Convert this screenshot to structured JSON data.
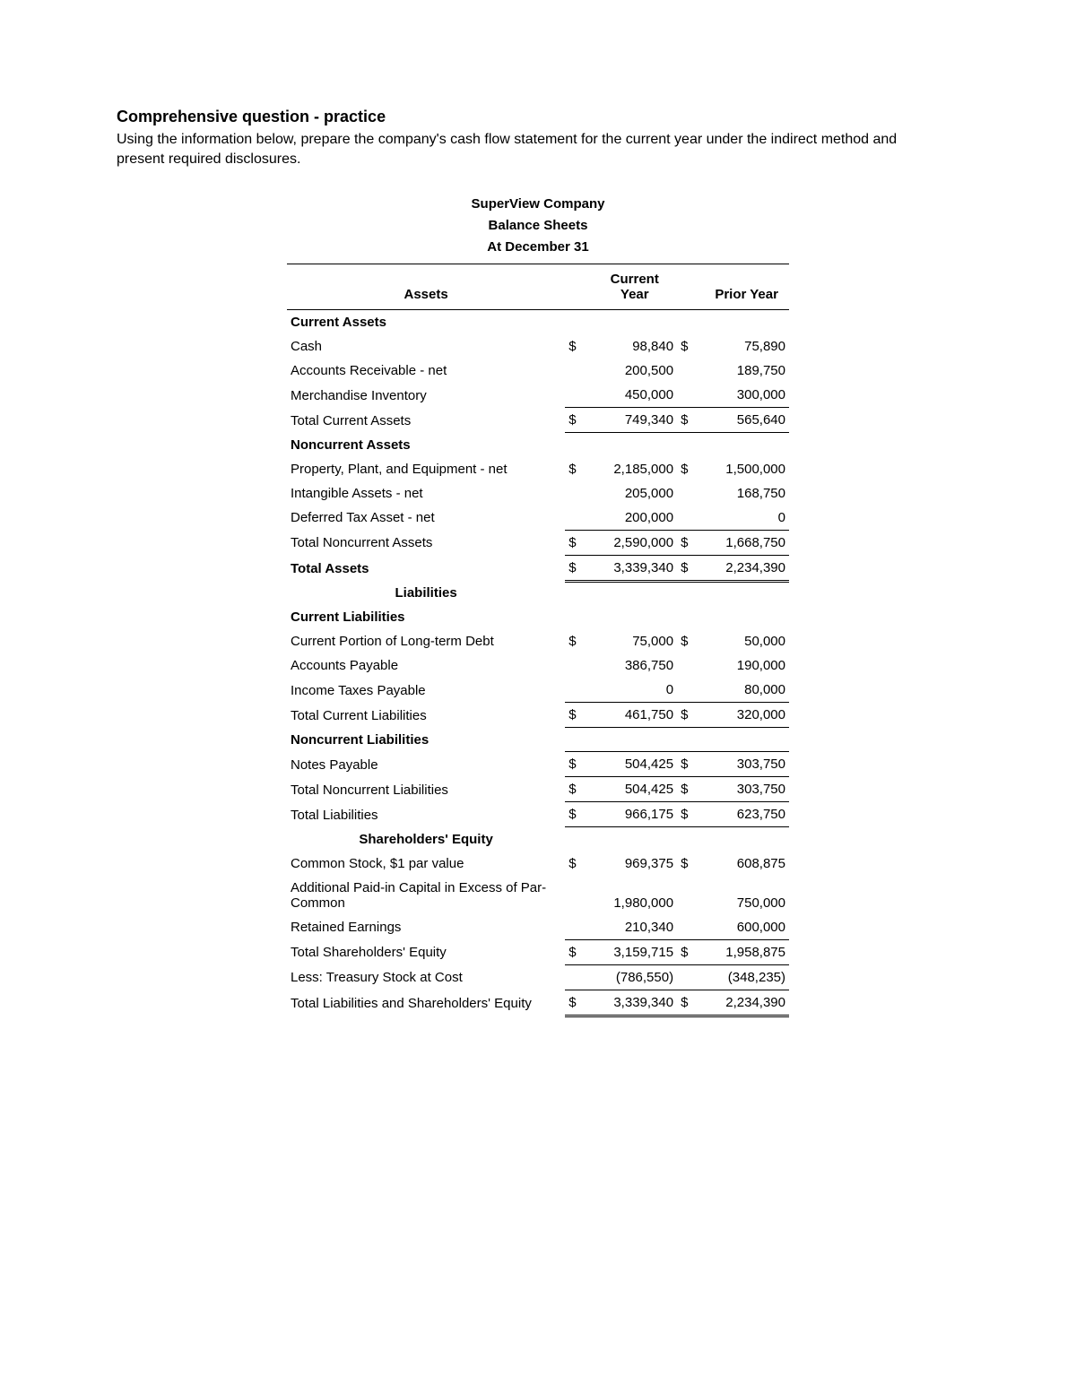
{
  "page": {
    "title": "Comprehensive question - practice",
    "body": "Using the information below, prepare the company's cash flow statement for the current year under the indirect method and present required disclosures."
  },
  "statement": {
    "company": "SuperView Company",
    "report": "Balance Sheets",
    "date": "At December 31",
    "col_assets": "Assets",
    "col_current": "Current Year",
    "col_prior": "Prior Year"
  },
  "sections": {
    "current_assets": "Current Assets",
    "noncurrent_assets": "Noncurrent Assets",
    "total_assets": "Total Assets",
    "liabilities": "Liabilities",
    "current_liabilities": "Current Liabilities",
    "noncurrent_liabilities": "Noncurrent Liabilities",
    "shareholders_equity": "Shareholders' Equity"
  },
  "dollar": "$",
  "rows": {
    "cash": {
      "label": "Cash",
      "cy": "98,840",
      "py": "75,890"
    },
    "ar": {
      "label": "Accounts Receivable - net",
      "cy": "200,500",
      "py": "189,750"
    },
    "inventory": {
      "label": "Merchandise Inventory",
      "cy": "450,000",
      "py": "300,000"
    },
    "tca": {
      "label": "Total Current Assets",
      "cy": "749,340",
      "py": "565,640"
    },
    "ppe": {
      "label": "Property, Plant, and Equipment - net",
      "cy": "2,185,000",
      "py": "1,500,000"
    },
    "intang": {
      "label": "Intangible Assets - net",
      "cy": "205,000",
      "py": "168,750"
    },
    "dta": {
      "label": "Deferred Tax Asset - net",
      "cy": "200,000",
      "py": "0"
    },
    "tnca": {
      "label": "Total Noncurrent Assets",
      "cy": "2,590,000",
      "py": "1,668,750"
    },
    "ta": {
      "label": "",
      "cy": "3,339,340",
      "py": "2,234,390"
    },
    "cpltd": {
      "label": "Current Portion of Long-term Debt",
      "cy": "75,000",
      "py": "50,000"
    },
    "ap": {
      "label": "Accounts Payable",
      "cy": "386,750",
      "py": "190,000"
    },
    "itp": {
      "label": "Income Taxes Payable",
      "cy": "0",
      "py": "80,000"
    },
    "tcl": {
      "label": "Total Current Liabilities",
      "cy": "461,750",
      "py": "320,000"
    },
    "np": {
      "label": "Notes Payable",
      "cy": "504,425",
      "py": "303,750"
    },
    "tncl": {
      "label": "Total Noncurrent Liabilities",
      "cy": "504,425",
      "py": "303,750"
    },
    "tl": {
      "label": "Total Liabilities",
      "cy": "966,175",
      "py": "623,750"
    },
    "cs": {
      "label": "Common Stock, $1 par value",
      "cy": "969,375",
      "py": "608,875"
    },
    "apic": {
      "label": "Additional Paid-in Capital in Excess of Par-Common",
      "cy": "1,980,000",
      "py": "750,000"
    },
    "re": {
      "label": "Retained Earnings",
      "cy": "210,340",
      "py": "600,000"
    },
    "tse": {
      "label": "Total Shareholders' Equity",
      "cy": "3,159,715",
      "py": "1,958,875"
    },
    "treasury": {
      "label": "Less: Treasury Stock at Cost",
      "cy": "(786,550)",
      "py": "(348,235)"
    },
    "tlse": {
      "label": "Total Liabilities and Shareholders' Equity",
      "cy": "3,339,340",
      "py": "2,234,390"
    }
  }
}
